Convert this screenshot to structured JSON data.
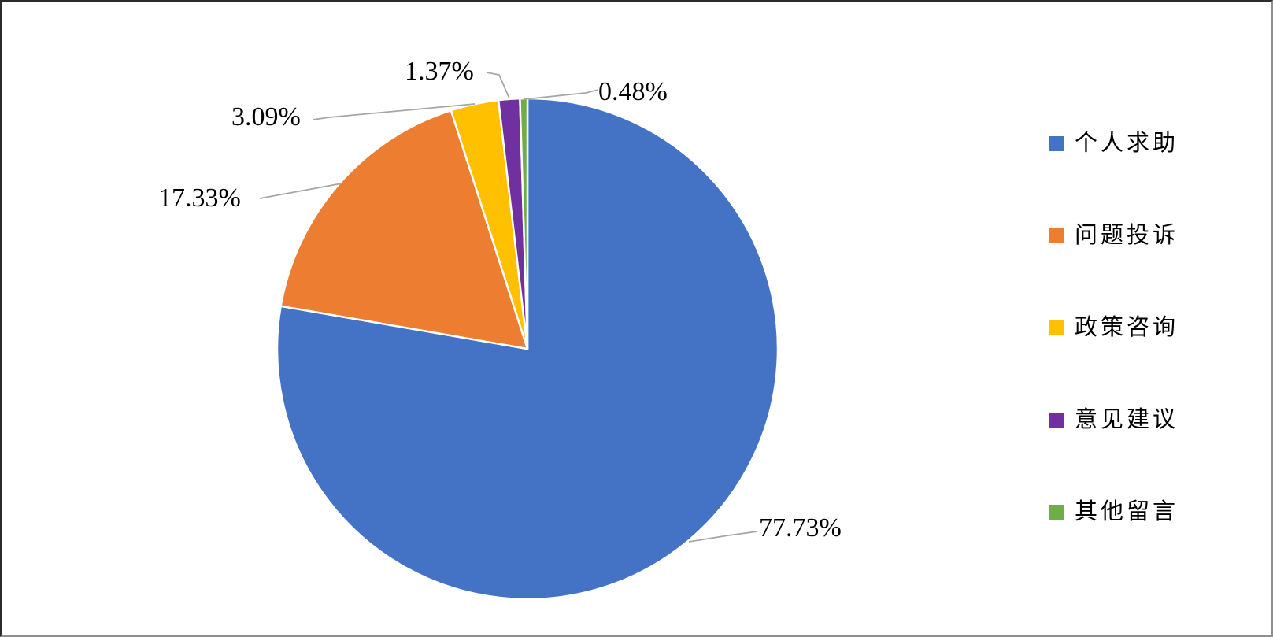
{
  "chart_data": {
    "type": "pie",
    "title": "",
    "legend_position": "right",
    "start_angle_deg": 0,
    "direction": "clockwise",
    "slice_border_color": "#FFFFFF",
    "leader_line_color": "#A6A6A6",
    "background_color": "#FFFFFF",
    "categories": [
      "个人求助",
      "问题投诉",
      "政策咨询",
      "意见建议",
      "其他留言"
    ],
    "values": [
      77.73,
      17.33,
      3.09,
      1.37,
      0.48
    ],
    "slices": [
      {
        "label": "个人求助",
        "value": 77.73,
        "display": "77.73%",
        "color": "#4472C4"
      },
      {
        "label": "问题投诉",
        "value": 17.33,
        "display": "17.33%",
        "color": "#ED7D31"
      },
      {
        "label": "政策咨询",
        "value": 3.09,
        "display": "3.09%",
        "color": "#FFC000"
      },
      {
        "label": "意见建议",
        "value": 1.37,
        "display": "1.37%",
        "color": "#7030A0"
      },
      {
        "label": "其他留言",
        "value": 0.48,
        "display": "0.48%",
        "color": "#70AD47"
      }
    ]
  }
}
